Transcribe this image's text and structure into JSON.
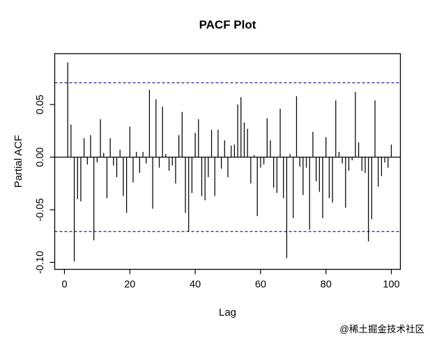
{
  "title": "PACF Plot",
  "x_axis": {
    "label": "Lag",
    "ticks": [
      0,
      20,
      40,
      60,
      80,
      100
    ]
  },
  "y_axis": {
    "label": "Partial ACF",
    "ticks": [
      "0.05",
      "0.00",
      "-0.05",
      "-0.10"
    ],
    "tick_values": [
      0.05,
      0.0,
      -0.05,
      -0.1
    ]
  },
  "watermark": "@稀土掘金技术社区",
  "colors": {
    "spike": "#000000",
    "axis": "#000000",
    "ci_line": "#22228c",
    "watermark": "#c6c6c6",
    "background": "#ffffff"
  },
  "chart_data": {
    "type": "bar",
    "subtype": "pacf-spike-plot",
    "title": "PACF Plot",
    "xlabel": "Lag",
    "ylabel": "Partial ACF",
    "xlim": [
      -3,
      103
    ],
    "ylim": [
      -0.1066,
      0.0983
    ],
    "grid": false,
    "confidence_level_lines": [
      0.0707,
      -0.0707
    ],
    "ci_line_style": "dashed",
    "lags": [
      1,
      2,
      3,
      4,
      5,
      6,
      7,
      8,
      9,
      10,
      11,
      12,
      13,
      14,
      15,
      16,
      17,
      18,
      19,
      20,
      21,
      22,
      23,
      24,
      25,
      26,
      27,
      28,
      29,
      30,
      31,
      32,
      33,
      34,
      35,
      36,
      37,
      38,
      39,
      40,
      41,
      42,
      43,
      44,
      45,
      46,
      47,
      48,
      49,
      50,
      51,
      52,
      53,
      54,
      55,
      56,
      57,
      58,
      59,
      60,
      61,
      62,
      63,
      64,
      65,
      66,
      67,
      68,
      69,
      70,
      71,
      72,
      73,
      74,
      75,
      76,
      77,
      78,
      79,
      80,
      81,
      82,
      83,
      84,
      85,
      86,
      87,
      88,
      89,
      90,
      91,
      92,
      93,
      94,
      95,
      96,
      97,
      98,
      99,
      100
    ],
    "values": [
      0.09,
      0.031,
      -0.099,
      -0.04,
      -0.042,
      0.018,
      -0.007,
      0.021,
      -0.079,
      -0.005,
      0.036,
      0.004,
      -0.039,
      0.018,
      -0.008,
      -0.019,
      0.007,
      -0.037,
      -0.053,
      0.029,
      -0.024,
      0.005,
      -0.015,
      0.005,
      -0.006,
      0.064,
      -0.049,
      0.055,
      -0.01,
      0.048,
      0.003,
      -0.013,
      -0.008,
      -0.025,
      0.021,
      0.043,
      -0.053,
      -0.071,
      -0.034,
      0.023,
      0.036,
      -0.037,
      -0.041,
      -0.019,
      0.026,
      -0.037,
      0.026,
      -0.011,
      0.016,
      -0.019,
      0.011,
      0.012,
      0.05,
      0.057,
      0.033,
      0.027,
      -0.025,
      0.002,
      -0.056,
      -0.01,
      -0.007,
      0.037,
      0.016,
      -0.029,
      -0.034,
      0.046,
      -0.039,
      -0.096,
      0.003,
      -0.058,
      0.058,
      -0.009,
      -0.036,
      -0.01,
      -0.069,
      0.024,
      -0.023,
      -0.033,
      -0.058,
      0.019,
      -0.039,
      -0.043,
      0.054,
      0.005,
      -0.006,
      -0.048,
      -0.013,
      -0.003,
      0.062,
      0.014,
      -0.013,
      -0.015,
      -0.08,
      -0.059,
      0.054,
      -0.028,
      -0.018,
      -0.005,
      -0.01,
      0.012
    ]
  }
}
